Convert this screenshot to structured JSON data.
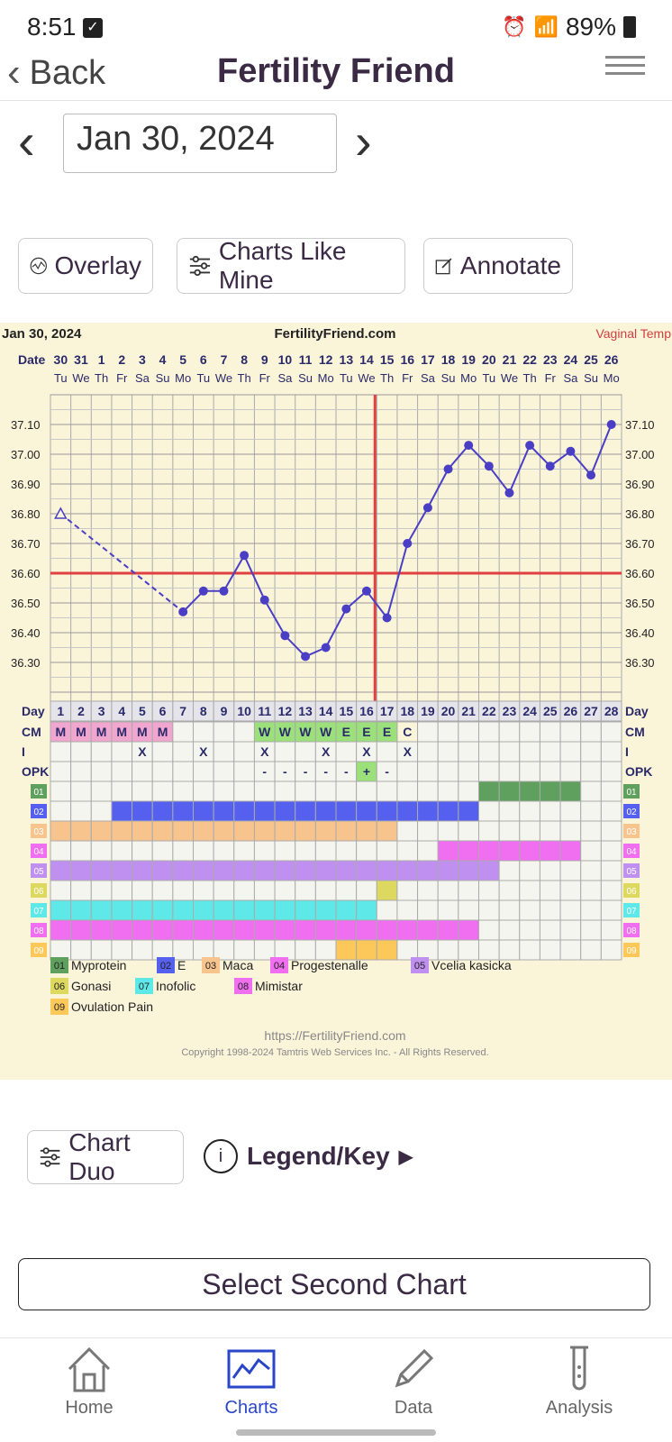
{
  "status_bar": {
    "time": "8:51",
    "battery": "89%"
  },
  "header": {
    "back_label": "Back",
    "title": "Fertility Friend"
  },
  "date_nav": {
    "date": "Jan 30, 2024"
  },
  "toolbar": {
    "overlay": "Overlay",
    "charts_like_mine": "Charts Like Mine",
    "annotate": "Annotate"
  },
  "chart_header": {
    "date": "Jan 30, 2024",
    "site": "FertilityFriend.com",
    "temp_type": "Vaginal Temp"
  },
  "chart_data": {
    "type": "line",
    "date_row_label": "Date",
    "dates": [
      "30",
      "31",
      "1",
      "2",
      "3",
      "4",
      "5",
      "6",
      "7",
      "8",
      "9",
      "10",
      "11",
      "12",
      "13",
      "14",
      "15",
      "16",
      "17",
      "18",
      "19",
      "20",
      "21",
      "22",
      "23",
      "24",
      "25",
      "26"
    ],
    "weekdays": [
      "Tu",
      "We",
      "Th",
      "Fr",
      "Sa",
      "Su",
      "Mo",
      "Tu",
      "We",
      "Th",
      "Fr",
      "Sa",
      "Su",
      "Mo",
      "Tu",
      "We",
      "Th",
      "Fr",
      "Sa",
      "Su",
      "Mo",
      "Tu",
      "We",
      "Th",
      "Fr",
      "Sa",
      "Su",
      "Mo"
    ],
    "cycle_days": [
      "1",
      "2",
      "3",
      "4",
      "5",
      "6",
      "7",
      "8",
      "9",
      "10",
      "11",
      "12",
      "13",
      "14",
      "15",
      "16",
      "17",
      "18",
      "19",
      "20",
      "21",
      "22",
      "23",
      "24",
      "25",
      "26",
      "27",
      "28"
    ],
    "y_ticks": [
      "36.30",
      "36.40",
      "36.50",
      "36.60",
      "36.70",
      "36.80",
      "36.90",
      "37.00",
      "37.10"
    ],
    "ylim": [
      36.2,
      37.2
    ],
    "temperatures": [
      36.8,
      null,
      null,
      null,
      null,
      null,
      36.47,
      36.54,
      36.54,
      36.66,
      36.51,
      36.39,
      36.32,
      36.35,
      36.48,
      36.54,
      36.45,
      36.7,
      36.82,
      36.95,
      37.03,
      36.96,
      36.87,
      37.03,
      36.96,
      37.01,
      36.93,
      37.1
    ],
    "coverline": 36.6,
    "ovulation_day": 17,
    "row_labels": {
      "day": "Day",
      "cm": "CM",
      "i": "I",
      "opk": "OPK"
    },
    "cm": [
      "M",
      "M",
      "M",
      "M",
      "M",
      "M",
      "",
      "",
      "",
      "",
      "W",
      "W",
      "W",
      "W",
      "E",
      "E",
      "E",
      "C",
      "",
      "",
      "",
      "",
      "",
      "",
      "",
      "",
      "",
      ""
    ],
    "intercourse": [
      "",
      "",
      "",
      "",
      "X",
      "",
      "",
      "X",
      "",
      "",
      "X",
      "",
      "",
      "X",
      "",
      "X",
      "",
      "X",
      "",
      "",
      "",
      "",
      "",
      "",
      "",
      "",
      "",
      ""
    ],
    "opk": [
      "",
      "",
      "",
      "",
      "",
      "",
      "",
      "",
      "",
      "",
      "-",
      "-",
      "-",
      "-",
      "-",
      "+",
      "-",
      "",
      "",
      "",
      "",
      "",
      "",
      "",
      "",
      "",
      "",
      ""
    ],
    "cm_colors": {
      "M": "#f0a6cf",
      "W": "#9be07a",
      "E": "#9be07a",
      "C": "#faf4d9"
    },
    "supplements": [
      {
        "code": "01",
        "name": "Myprotein",
        "color": "#5fa05f",
        "start": 22,
        "end": 26
      },
      {
        "code": "02",
        "name": "E",
        "color": "#5560ee",
        "start": 4,
        "end": 21
      },
      {
        "code": "03",
        "name": "Maca",
        "color": "#f8c48e",
        "start": 1,
        "end": 17
      },
      {
        "code": "04",
        "name": "Progestenalle",
        "color": "#f06ef0",
        "start": 20,
        "end": 26
      },
      {
        "code": "05",
        "name": "Vcelia kasicka",
        "color": "#c090f0",
        "start": 1,
        "end": 22
      },
      {
        "code": "06",
        "name": "Gonasi",
        "color": "#dcd860",
        "start": 17,
        "end": 17
      },
      {
        "code": "07",
        "name": "Inofolic",
        "color": "#5ee8e8",
        "start": 1,
        "end": 16
      },
      {
        "code": "08",
        "name": "Mimistar",
        "color": "#f06ef0",
        "start": 1,
        "end": 21
      },
      {
        "code": "09",
        "name": "Ovulation Pain",
        "color": "#fdc85a",
        "start": 15,
        "end": 17
      }
    ],
    "footer_url": "https://FertilityFriend.com",
    "copyright": "Copyright 1998-2024 Tamtris Web Services Inc. - All Rights Reserved."
  },
  "chart_tools": {
    "chart_duo": "Chart Duo",
    "legend_key": "Legend/Key"
  },
  "select_second_chart": "Select Second Chart",
  "tabs": [
    {
      "label": "Home",
      "icon": "home-icon"
    },
    {
      "label": "Charts",
      "icon": "chart-icon",
      "active": true
    },
    {
      "label": "Data",
      "icon": "pencil-icon"
    },
    {
      "label": "Analysis",
      "icon": "test-tube-icon"
    }
  ]
}
